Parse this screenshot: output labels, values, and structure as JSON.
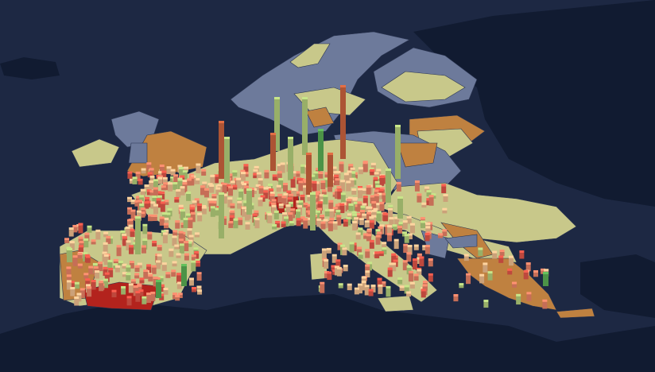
{
  "map": {
    "colors": {
      "sea": "#1d2843",
      "outside_land": "#111b31",
      "region_slate": "#6d7a9b",
      "region_khaki": "#c8c88a",
      "region_brown": "#bf8140",
      "region_red": "#b3231d",
      "bar_red": "#e8584a",
      "bar_salmon": "#f2866a",
      "bar_peach": "#f8c493",
      "bar_lightgreen": "#b9d57f",
      "bar_green": "#5db356",
      "bar_orange": "#d2663f"
    }
  }
}
